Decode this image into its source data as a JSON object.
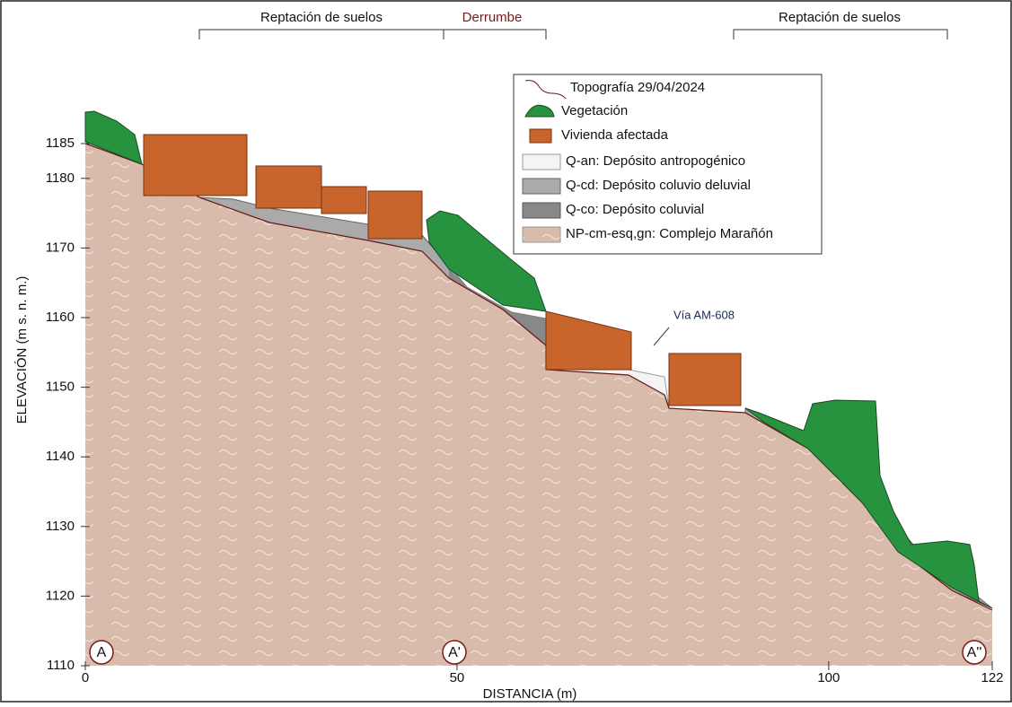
{
  "chart_data": {
    "type": "profile",
    "xlabel": "DISTANCIA (m)",
    "ylabel": "ELEVACIÓN (m s. n. m.)",
    "xlim": [
      0,
      122
    ],
    "ylim": [
      1110,
      1185
    ],
    "xticks": [
      0,
      50,
      100,
      122
    ],
    "yticks": [
      1110,
      1120,
      1130,
      1140,
      1150,
      1160,
      1170,
      1180,
      1185
    ],
    "brackets": [
      "Reptación de suelos",
      "Derrumbe",
      "Reptación de suelos"
    ],
    "legend": [
      "Topografía 29/04/2024",
      "Vegetación",
      "Vivienda afectada",
      "Q-an: Depósito antropogénico",
      "Q-cd: Depósito coluvio deluvial",
      "Q-co: Depósito coluvial",
      "NP-cm-esq,gn: Complejo Marañón"
    ],
    "annotation": "Vía AM-608",
    "section_markers": [
      "A",
      "A'",
      "A''"
    ]
  }
}
